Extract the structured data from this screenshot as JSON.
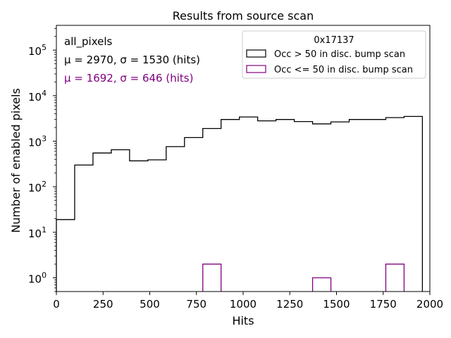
{
  "chart_data": {
    "type": "histogram",
    "title": "Results from source scan",
    "xlabel": "Hits",
    "ylabel": "Number of enabled pixels",
    "xlim": [
      0,
      2000
    ],
    "ylim": [
      0.5,
      350000
    ],
    "yscale": "log",
    "x_ticks": [
      0,
      250,
      500,
      750,
      1000,
      1250,
      1500,
      1750,
      2000
    ],
    "x_tick_labels": [
      "0",
      "250",
      "500",
      "750",
      "1000",
      "1250",
      "1500",
      "1750",
      "2000"
    ],
    "y_ticks": [
      1,
      10,
      100,
      1000,
      10000,
      100000
    ],
    "y_tick_base": "10",
    "y_tick_exponents": [
      "0",
      "1",
      "2",
      "3",
      "4",
      "5"
    ],
    "bin_edges": [
      0,
      98,
      196,
      294,
      392,
      490,
      588,
      686,
      784,
      882,
      980,
      1078,
      1176,
      1274,
      1372,
      1470,
      1568,
      1666,
      1764,
      1862,
      1960
    ],
    "series": [
      {
        "name": "Occ > 50 in disc. bump scan",
        "color": "#000000",
        "values": [
          19,
          300,
          550,
          650,
          370,
          390,
          760,
          1200,
          1900,
          3000,
          3400,
          2800,
          3000,
          2700,
          2400,
          2650,
          3000,
          3000,
          3300,
          3500
        ]
      },
      {
        "name": "Occ <= 50 in disc. bump scan",
        "color": "#800080",
        "values": [
          0,
          0,
          0,
          0,
          0,
          0,
          0,
          0,
          2,
          0,
          0,
          0,
          0,
          0,
          1,
          0,
          0,
          0,
          2,
          0
        ]
      }
    ],
    "legend": {
      "title": "0x17137",
      "placement": "top-right"
    },
    "annotations": [
      {
        "text": "all_pixels",
        "color": "#000000"
      },
      {
        "text": "μ = 2970, σ = 1530 (hits)",
        "color": "#000000"
      },
      {
        "text": "μ = 1692, σ = 646 (hits)",
        "color": "#800080"
      }
    ]
  }
}
